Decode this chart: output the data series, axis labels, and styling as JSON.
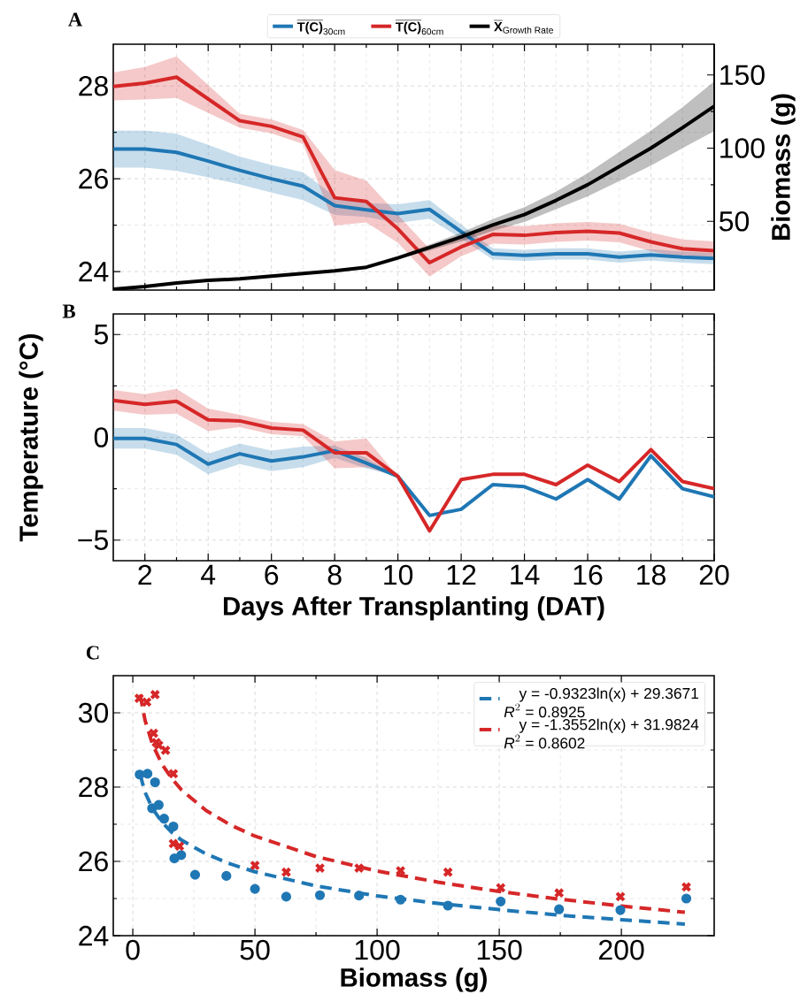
{
  "chart_data": [
    {
      "type": "line",
      "title": "A",
      "x": [
        1,
        2,
        3,
        4,
        5,
        6,
        7,
        8,
        9,
        10,
        11,
        12,
        13,
        14,
        15,
        16,
        17,
        18,
        19,
        20
      ],
      "xlim": [
        1,
        20
      ],
      "xticks": [
        2,
        4,
        6,
        8,
        10,
        12,
        14,
        16,
        18,
        20
      ],
      "ylim": [
        23.6,
        28.9
      ],
      "yticks": [
        24,
        26,
        28
      ],
      "y2lim": [
        3,
        171
      ],
      "y2ticks": [
        50,
        100,
        150
      ],
      "y2label": "Biomass (g)",
      "grid": true,
      "legend": "top",
      "tick_labels": "y",
      "series": [
        {
          "name": "\\overline{\\text{\\bfseries T(C)}}_{\\text{30cm}}",
          "color": "#1f77b4",
          "values": [
            26.64,
            26.64,
            26.57,
            26.38,
            26.18,
            26.0,
            25.84,
            25.42,
            25.33,
            25.25,
            25.34,
            24.86,
            24.38,
            24.35,
            24.38,
            24.38,
            24.31,
            24.36,
            24.31,
            24.28
          ],
          "lower": [
            26.24,
            26.24,
            26.17,
            26.03,
            25.88,
            25.7,
            25.54,
            25.22,
            25.18,
            25.05,
            25.14,
            24.71,
            24.26,
            24.23,
            24.26,
            24.26,
            24.19,
            24.24,
            24.19,
            24.16
          ],
          "upper": [
            27.04,
            27.04,
            26.97,
            26.73,
            26.48,
            26.3,
            26.14,
            25.62,
            25.48,
            25.45,
            25.54,
            25.01,
            24.5,
            24.47,
            24.5,
            24.5,
            24.43,
            24.48,
            24.43,
            24.4
          ]
        },
        {
          "name": "\\overline{\\text{\\bfseries T(C)}}_{\\text{60cm}}",
          "color": "#d62728",
          "values": [
            27.99,
            28.06,
            28.19,
            27.72,
            27.25,
            27.13,
            26.9,
            25.59,
            25.51,
            24.92,
            24.19,
            24.53,
            24.8,
            24.78,
            24.84,
            24.87,
            24.83,
            24.64,
            24.49,
            24.45
          ],
          "lower": [
            27.69,
            27.71,
            27.74,
            27.42,
            27.1,
            26.98,
            26.75,
            24.99,
            25.06,
            24.62,
            23.89,
            24.33,
            24.6,
            24.58,
            24.64,
            24.67,
            24.63,
            24.44,
            24.29,
            24.25
          ],
          "upper": [
            28.29,
            28.41,
            28.64,
            28.02,
            27.4,
            27.28,
            27.05,
            26.19,
            25.96,
            25.22,
            24.49,
            24.73,
            25.0,
            24.98,
            25.04,
            25.07,
            25.03,
            24.84,
            24.69,
            24.65
          ]
        },
        {
          "name": "\\overline{\\text{\\bfseries X}}_{\\text{Growth Rate}}",
          "color": "#000000",
          "axis": "y2",
          "values": [
            3.6,
            5.4,
            7.9,
            9.6,
            10.7,
            12.5,
            14.3,
            16.1,
            18.6,
            25,
            32.1,
            39.3,
            47.5,
            54.6,
            64.3,
            75,
            87.5,
            100,
            114,
            128.6
          ],
          "lower": [
            null,
            null,
            null,
            null,
            null,
            null,
            null,
            null,
            18.1,
            24,
            30.1,
            36.3,
            43.5,
            49.6,
            58.3,
            67,
            77.5,
            88,
            100,
            111.6
          ],
          "upper": [
            null,
            null,
            null,
            null,
            null,
            null,
            null,
            null,
            19.1,
            26,
            34.1,
            42.3,
            51.5,
            59.6,
            70.3,
            83,
            97.5,
            112,
            128,
            145.6
          ]
        }
      ]
    },
    {
      "type": "line",
      "title": "B",
      "xlabel": "Days After Transplanting (DAT)",
      "ylabel": "Temperature (°C)",
      "x": [
        1,
        2,
        3,
        4,
        5,
        6,
        7,
        8,
        9,
        10,
        11,
        12,
        13,
        14,
        15,
        16,
        17,
        18,
        19,
        20
      ],
      "xlim": [
        1,
        20
      ],
      "xticks": [
        2,
        4,
        6,
        8,
        10,
        12,
        14,
        16,
        18,
        20
      ],
      "ylim": [
        -6,
        6
      ],
      "yticks": [
        {
          "value": -5,
          "label": "−5"
        },
        0,
        5
      ],
      "grid": true,
      "series": [
        {
          "color": "#1f77b4",
          "values": [
            -0.05,
            -0.05,
            -0.35,
            -1.3,
            -0.8,
            -1.15,
            -0.95,
            -0.65,
            -1.25,
            -1.9,
            -3.8,
            -3.5,
            -2.3,
            -2.4,
            -3.0,
            -2.05,
            -3.0,
            -0.9,
            -2.5,
            -2.9
          ],
          "lower": [
            -0.55,
            -0.55,
            -0.85,
            -1.8,
            -1.3,
            -1.65,
            -1.45,
            -1.0,
            -1.5,
            -1.9,
            null,
            null,
            null,
            null,
            null,
            null,
            null,
            null,
            null,
            null
          ],
          "upper": [
            0.45,
            0.45,
            0.15,
            -0.8,
            -0.3,
            -0.65,
            -0.45,
            -0.4,
            -1.0,
            -1.9,
            null,
            null,
            null,
            null,
            null,
            null,
            null,
            null,
            null,
            null
          ]
        },
        {
          "color": "#d62728",
          "values": [
            1.8,
            1.6,
            1.75,
            0.85,
            0.8,
            0.45,
            0.35,
            -0.75,
            -0.75,
            -1.9,
            -4.55,
            -2.05,
            -1.8,
            -1.8,
            -2.3,
            -1.35,
            -2.15,
            -0.6,
            -2.15,
            -2.5
          ],
          "lower": [
            1.3,
            1.1,
            1.15,
            0.3,
            0.5,
            0.15,
            0.05,
            -1.5,
            -1.45,
            -1.9,
            null,
            null,
            null,
            null,
            null,
            null,
            null,
            null,
            null,
            null
          ],
          "upper": [
            2.3,
            2.1,
            2.35,
            1.4,
            1.1,
            0.75,
            0.65,
            -0.2,
            -0.05,
            -1.9,
            null,
            null,
            null,
            null,
            null,
            null,
            null,
            null,
            null,
            null
          ]
        }
      ]
    },
    {
      "type": "scatter",
      "title": "C",
      "xlabel": "Biomass (g)",
      "xlim": [
        -8,
        238
      ],
      "xticks": [
        0,
        50,
        100,
        150,
        200
      ],
      "ylim": [
        24,
        31
      ],
      "yticks": [
        24,
        26,
        28,
        30
      ],
      "grid": true,
      "legend": "top right",
      "series": [
        {
          "color": "#1f77b4",
          "marker": "circle",
          "x": [
            2.8,
            6,
            9.1,
            7.9,
            10.6,
            12.8,
            16.6,
            17,
            19.8,
            25.5,
            38.3,
            50,
            62.8,
            76.6,
            92.6,
            109.6,
            129,
            150.6,
            174.5,
            199.6,
            226.6
          ],
          "values": [
            28.34,
            28.36,
            28.13,
            27.43,
            27.52,
            27.15,
            26.94,
            26.08,
            26.17,
            25.64,
            25.61,
            25.26,
            25.05,
            25.09,
            25.08,
            24.97,
            24.81,
            24.92,
            24.71,
            24.69,
            25.0
          ]
        },
        {
          "color": "#d62728",
          "marker": "cross",
          "x": [
            2.6,
            5.7,
            9.1,
            8.5,
            9.6,
            10.6,
            13.4,
            16.6,
            16.6,
            19.1,
            50,
            62.8,
            76.6,
            92.6,
            109.6,
            129,
            150.6,
            174.5,
            199.6,
            226.6
          ],
          "values": [
            30.39,
            30.29,
            30.49,
            29.45,
            29.2,
            29.13,
            28.99,
            28.36,
            26.48,
            26.41,
            25.89,
            25.71,
            25.82,
            25.82,
            25.75,
            25.71,
            25.29,
            25.15,
            25.05,
            25.31
          ]
        },
        {
          "type": "line",
          "name": "\\begin{array}{@{}l@{}}\\text{\\hspace{1em}y = -0.9323ln(x) + 29.3671}\\\\ \\text{\\itshape R}^{2}\\text{ = 0.8925}\\end{array}",
          "color": "#1f77b4",
          "line_style": "dashed",
          "x": [
            3,
            5,
            8,
            12,
            16,
            20,
            30,
            40,
            50,
            75,
            100,
            125,
            150,
            175,
            200,
            226
          ],
          "values": [
            28.34,
            27.86,
            27.43,
            27.05,
            26.78,
            26.57,
            26.2,
            25.93,
            25.72,
            25.34,
            25.07,
            24.87,
            24.7,
            24.55,
            24.43,
            24.31
          ]
        },
        {
          "type": "line",
          "name": "\\begin{array}{@{}l@{}}\\text{\\hspace{1em}y = -1.3552ln(x) + 31.9824}\\\\ \\text{\\itshape R}^{2}\\text{ = 0.8602}\\end{array}",
          "color": "#d62728",
          "line_style": "dashed",
          "x": [
            3,
            5,
            8,
            12,
            16,
            20,
            30,
            40,
            50,
            75,
            100,
            125,
            150,
            175,
            200,
            226
          ],
          "values": [
            30.49,
            29.8,
            29.16,
            28.61,
            28.23,
            27.92,
            27.37,
            26.98,
            26.68,
            26.13,
            25.74,
            25.44,
            25.19,
            24.98,
            24.8,
            24.63
          ]
        }
      ]
    }
  ]
}
